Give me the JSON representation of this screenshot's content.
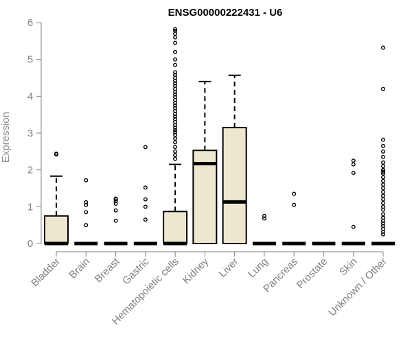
{
  "chart_data": {
    "type": "boxplot",
    "title": "ENSG00000222431 - U6",
    "xlabel": "",
    "ylabel": "Expression",
    "ylim": [
      0,
      6
    ],
    "yticks": [
      0,
      1,
      2,
      3,
      4,
      5,
      6
    ],
    "categories": [
      "Bladder",
      "Brain",
      "Breast",
      "Gastric",
      "Hematopoietic cells",
      "Kidney",
      "Liver",
      "Lung",
      "Pancreas",
      "Prostate",
      "Skin",
      "Unknown / Other"
    ],
    "box_fill": "#ede7cf",
    "box_stroke": "#000000",
    "grid": false,
    "legend": "none",
    "series": [
      {
        "name": "Bladder",
        "min": 0,
        "q1": 0,
        "median": 0,
        "q3": 0.75,
        "max": 1.83,
        "outliers": [
          2.42,
          2.44
        ]
      },
      {
        "name": "Brain",
        "min": 0,
        "q1": 0,
        "median": 0,
        "q3": 0,
        "max": 0,
        "outliers": [
          0.5,
          0.85,
          1.05,
          1.12,
          1.72
        ]
      },
      {
        "name": "Breast",
        "min": 0,
        "q1": 0,
        "median": 0,
        "q3": 0,
        "max": 0,
        "outliers": [
          0.62,
          0.9,
          1.08,
          1.15,
          1.2,
          1.22
        ]
      },
      {
        "name": "Gastric",
        "min": 0,
        "q1": 0,
        "median": 0,
        "q3": 0,
        "max": 0,
        "outliers": [
          0.65,
          1.0,
          1.2,
          1.52,
          2.62
        ]
      },
      {
        "name": "Hematopoietic cells",
        "min": 0,
        "q1": 0,
        "median": 0,
        "q3": 0.87,
        "max": 2.15,
        "outliers": [
          2.3,
          2.4,
          2.5,
          2.62,
          2.75,
          2.85,
          2.95,
          3.02,
          3.08,
          3.15,
          3.22,
          3.3,
          3.38,
          3.45,
          3.52,
          3.6,
          3.68,
          3.75,
          3.82,
          3.9,
          3.98,
          4.05,
          4.12,
          4.2,
          4.28,
          4.35,
          4.42,
          4.5,
          4.58,
          4.65,
          4.85,
          5.0,
          5.2,
          5.45,
          5.6,
          5.7,
          5.78,
          5.82
        ]
      },
      {
        "name": "Kidney",
        "min": 0,
        "q1": 0,
        "median": 2.17,
        "q3": 2.53,
        "max": 4.4,
        "outliers": []
      },
      {
        "name": "Liver",
        "min": 0,
        "q1": 0,
        "median": 1.13,
        "q3": 3.15,
        "max": 4.57,
        "outliers": []
      },
      {
        "name": "Lung",
        "min": 0,
        "q1": 0,
        "median": 0,
        "q3": 0,
        "max": 0,
        "outliers": [
          0.68,
          0.75
        ]
      },
      {
        "name": "Pancreas",
        "min": 0,
        "q1": 0,
        "median": 0,
        "q3": 0,
        "max": 0,
        "outliers": [
          1.05,
          1.35
        ]
      },
      {
        "name": "Prostate",
        "min": 0,
        "q1": 0,
        "median": 0,
        "q3": 0,
        "max": 0,
        "outliers": []
      },
      {
        "name": "Skin",
        "min": 0,
        "q1": 0,
        "median": 0,
        "q3": 0,
        "max": 0,
        "outliers": [
          0.45,
          1.92,
          2.15,
          2.25
        ]
      },
      {
        "name": "Unknown / Other",
        "min": 0,
        "q1": 0,
        "median": 0,
        "q3": 0,
        "max": 0,
        "outliers": [
          0.25,
          0.32,
          0.4,
          0.48,
          0.55,
          0.62,
          0.7,
          0.8,
          0.92,
          1.0,
          1.1,
          1.2,
          1.3,
          1.4,
          1.5,
          1.6,
          1.7,
          1.8,
          1.9,
          1.95,
          2.0,
          2.1,
          2.2,
          2.35,
          2.5,
          2.65,
          2.82,
          4.2,
          5.32
        ]
      }
    ]
  }
}
